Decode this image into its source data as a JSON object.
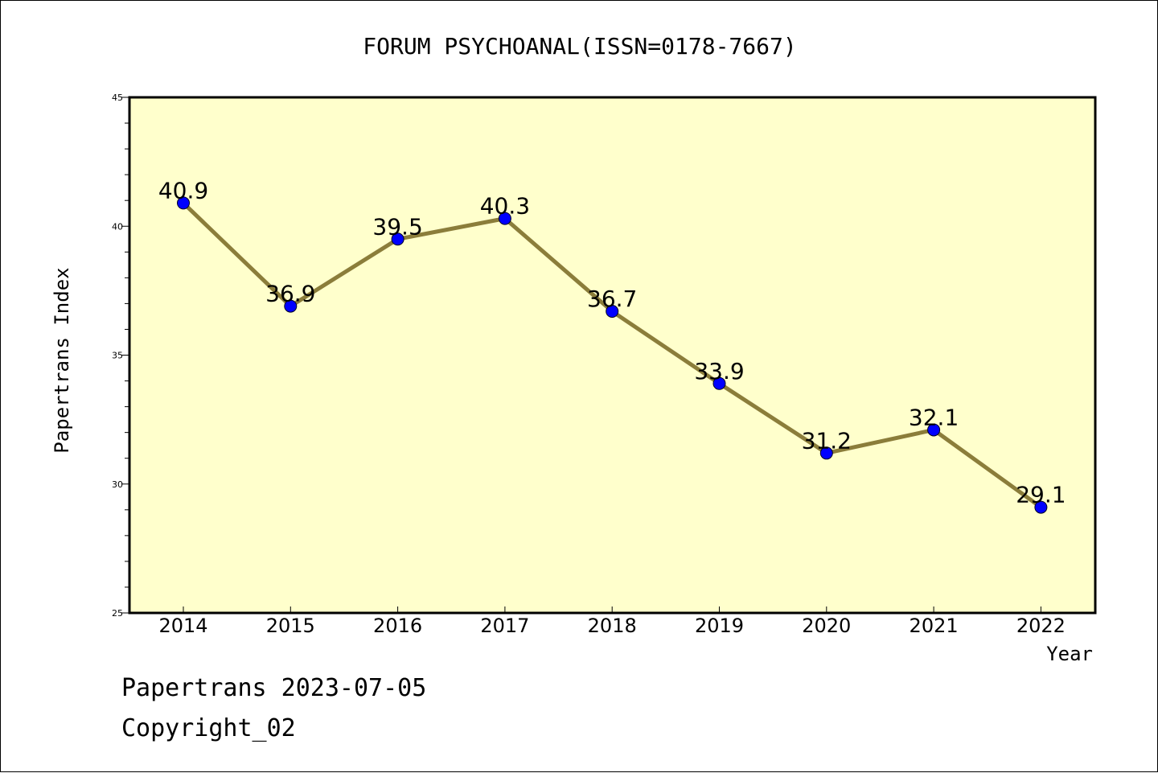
{
  "chart_data": {
    "type": "line",
    "title": "FORUM PSYCHOANAL(ISSN=0178-7667)",
    "xlabel": "Year",
    "ylabel": "Papertrans Index",
    "x": [
      "2014",
      "2015",
      "2016",
      "2017",
      "2018",
      "2019",
      "2020",
      "2021",
      "2022"
    ],
    "values": [
      40.9,
      36.9,
      39.5,
      40.3,
      36.7,
      33.9,
      31.2,
      32.1,
      29.1
    ],
    "data_labels": [
      "40.9",
      "36.9",
      "39.5",
      "40.3",
      "36.7",
      "33.9",
      "31.2",
      "32.1",
      "29.1"
    ],
    "ylim": [
      25,
      45
    ],
    "yticks": [
      "25",
      "30",
      "35",
      "40",
      "45"
    ],
    "grid": false,
    "legend": "none",
    "colors": {
      "plot_bg": "#ffffcc",
      "line": "#8b7d3a",
      "marker": "#0000ff"
    }
  },
  "footer": {
    "line1": "Papertrans 2023-07-05",
    "line2": "Copyright_02"
  }
}
